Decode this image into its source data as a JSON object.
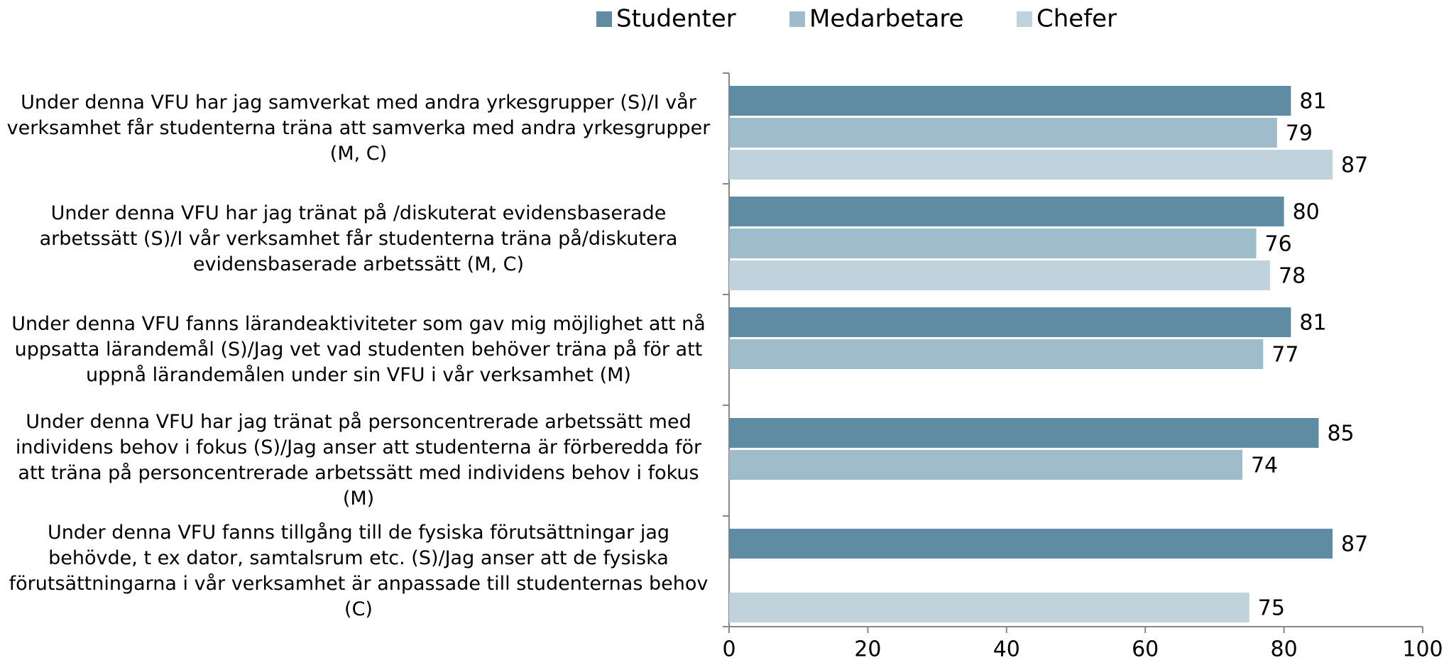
{
  "chart_data": {
    "type": "hbar",
    "categories": [
      "Under denna VFU har jag samverkat med andra yrkesgrupper (S)/I vår verksamhet får studenterna träna att samverka med andra yrkesgrupper (M, C)",
      "Under denna VFU har jag tränat på /diskuterat evidensbaserade arbetssätt (S)/I vår verksamhet får studenterna träna på/diskutera evidensbaserade arbetssätt (M, C)",
      "Under denna VFU fanns lärandeaktiviteter som gav mig möjlighet att nå uppsatta lärandemål (S)/Jag vet vad studenten behöver träna på för att uppnå lärandemålen under sin VFU i vår verksamhet (M)",
      "Under denna VFU har jag tränat på personcentrerade arbetssätt med individens behov i fokus (S)/Jag anser att studenterna är förberedda för att träna på personcentrerade arbetssätt med individens behov i fokus (M)",
      "Under denna VFU fanns tillgång till de fysiska förutsättningar jag behövde, t ex dator, samtalsrum etc. (S)/Jag anser att de fysiska förutsättningarna i vår verksamhet är anpassade till studenternas behov (C)"
    ],
    "series": [
      {
        "name": "Studenter",
        "color": "#5f8ba3",
        "values": [
          81,
          80,
          81,
          85,
          87
        ]
      },
      {
        "name": "Medarbetare",
        "color": "#9fbccb",
        "values": [
          79,
          76,
          77,
          74,
          null
        ]
      },
      {
        "name": "Chefer",
        "color": "#c0d3dd",
        "values": [
          87,
          78,
          null,
          null,
          75
        ]
      }
    ],
    "xlim": [
      0,
      100
    ],
    "xticks": [
      0,
      20,
      40,
      60,
      80,
      100
    ],
    "legend": "top"
  }
}
